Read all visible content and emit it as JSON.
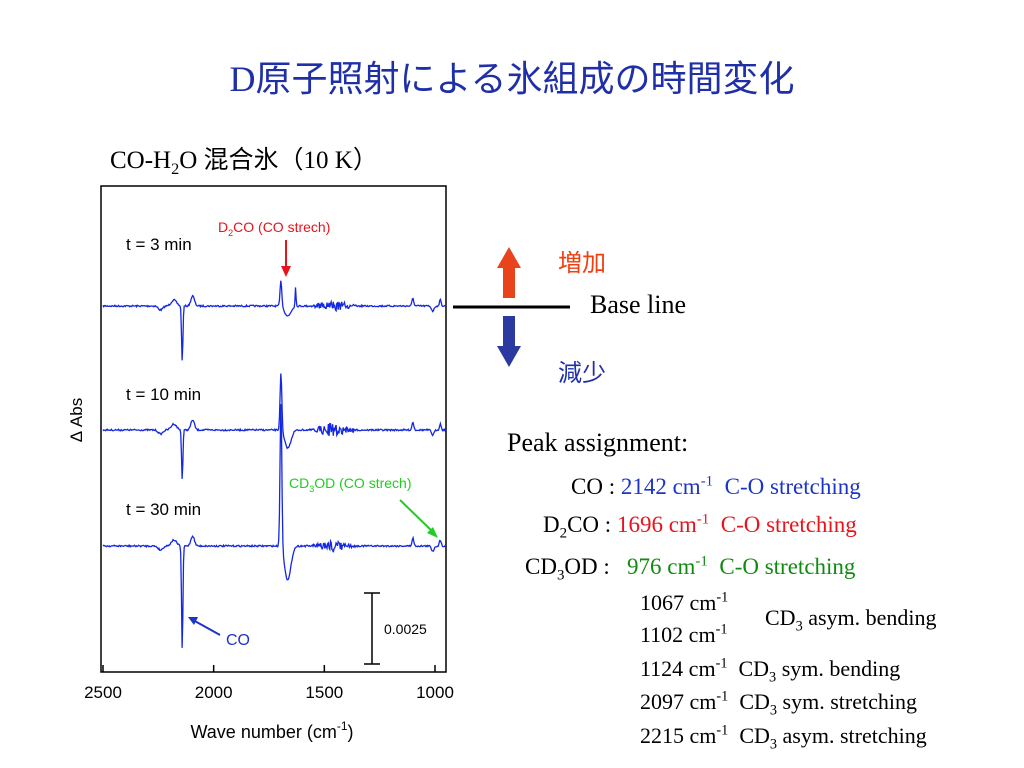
{
  "title": "D原子照射による氷組成の時間変化",
  "figure": {
    "heading": [
      "CO-H",
      "2",
      "O 混合氷（10 K）"
    ],
    "y_label": "Δ Abs",
    "x_label": [
      "Wave number (cm",
      "-1",
      ")"
    ],
    "xticks": [
      2500,
      2000,
      1500,
      1000
    ],
    "traces": [
      "t = 3 min",
      "t = 10 min",
      "t = 30 min"
    ],
    "annotations": {
      "d2co": [
        "D",
        "2",
        "CO (CO strech)"
      ],
      "cd3od": [
        "CD",
        "3",
        "OD (CO strech)"
      ],
      "co": "CO",
      "scale": "0.0025"
    }
  },
  "legend": {
    "increase": "増加",
    "baseline": "Base line",
    "decrease": "減少"
  },
  "peaks": {
    "heading": "Peak assignment:",
    "rows": [
      [
        "CO : ",
        "2142 cm",
        "-1",
        "C-O stretching"
      ],
      [
        "D",
        "2",
        "CO : ",
        "1696 cm",
        "-1",
        "C-O stretching"
      ],
      [
        "CD",
        "3",
        "OD : ",
        "976 cm",
        "-1",
        "C-O stretching"
      ],
      [
        "1067 cm",
        "-1"
      ],
      [
        "1102 cm",
        "-1"
      ],
      [
        "1124 cm",
        "-1",
        "CD",
        "3",
        " sym. bending"
      ],
      [
        "2097 cm",
        "-1",
        "CD",
        "3",
        " sym. stretching"
      ],
      [
        "2215 cm",
        "-1",
        "CD",
        "3",
        " asym. stretching"
      ]
    ],
    "shared": [
      "CD",
      "3",
      " asym. bending"
    ]
  }
}
